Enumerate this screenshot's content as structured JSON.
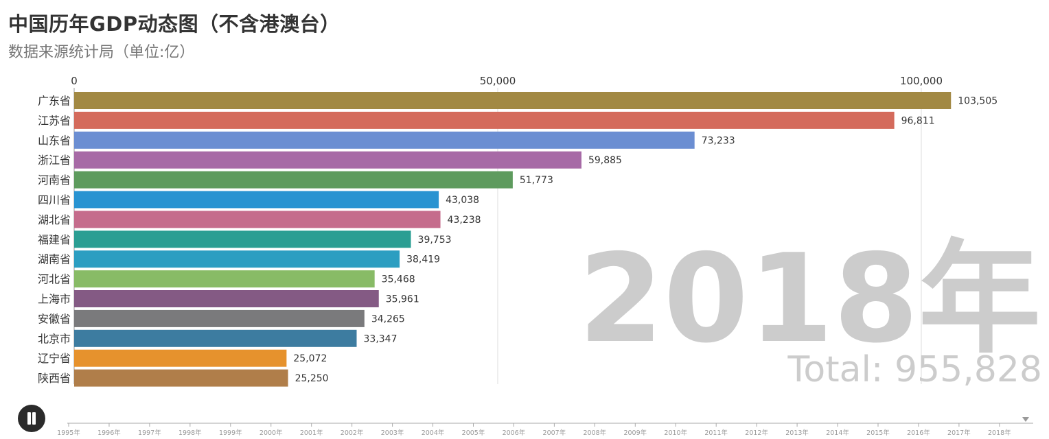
{
  "header": {
    "title": "中国历年GDP动态图（不含港澳台）",
    "subtitle": "数据来源统计局（单位:亿）"
  },
  "colors": {
    "axis_text": "#333333",
    "grid": "#dddddd",
    "year_watermark": "#cccccc",
    "play_button": "#2b2b2b",
    "timeline": "#aaaaaa"
  },
  "chart_data": {
    "type": "bar",
    "orientation": "horizontal",
    "current_year_label": "2018年",
    "total_label": "Total: 955,828",
    "xlim": [
      0,
      100000
    ],
    "x_ticks": [
      {
        "value": 0,
        "label": "0"
      },
      {
        "value": 50000,
        "label": "50,000"
      },
      {
        "value": 100000,
        "label": "100,000"
      }
    ],
    "grid": true,
    "bars": [
      {
        "name": "广东省",
        "value": 103505,
        "label": "103,505",
        "color": "#a28944"
      },
      {
        "name": "江苏省",
        "value": 96811,
        "label": "96,811",
        "color": "#d46b5c"
      },
      {
        "name": "山东省",
        "value": 73233,
        "label": "73,233",
        "color": "#6b8ed2"
      },
      {
        "name": "浙江省",
        "value": 59885,
        "label": "59,885",
        "color": "#a76aa6"
      },
      {
        "name": "河南省",
        "value": 51773,
        "label": "51,773",
        "color": "#5e9b5e"
      },
      {
        "name": "四川省",
        "value": 43038,
        "label": "43,038",
        "color": "#2993d1"
      },
      {
        "name": "湖北省",
        "value": 43238,
        "label": "43,238",
        "color": "#c56c8c"
      },
      {
        "name": "福建省",
        "value": 39753,
        "label": "39,753",
        "color": "#2b9e93"
      },
      {
        "name": "湖南省",
        "value": 38419,
        "label": "38,419",
        "color": "#2c9ec1"
      },
      {
        "name": "河北省",
        "value": 35468,
        "label": "35,468",
        "color": "#88bb66"
      },
      {
        "name": "上海市",
        "value": 35961,
        "label": "35,961",
        "color": "#845a84"
      },
      {
        "name": "安徽省",
        "value": 34265,
        "label": "34,265",
        "color": "#7a7a7c"
      },
      {
        "name": "北京市",
        "value": 33347,
        "label": "33,347",
        "color": "#3d7ca0"
      },
      {
        "name": "辽宁省",
        "value": 25072,
        "label": "25,072",
        "color": "#e6922d"
      },
      {
        "name": "陕西省",
        "value": 25250,
        "label": "25,250",
        "color": "#b07e4a"
      }
    ],
    "timeline": {
      "years": [
        "1995年",
        "1996年",
        "1997年",
        "1998年",
        "1999年",
        "2000年",
        "2001年",
        "2002年",
        "2003年",
        "2004年",
        "2005年",
        "2006年",
        "2007年",
        "2008年",
        "2009年",
        "2010年",
        "2011年",
        "2012年",
        "2013年",
        "2014年",
        "2015年",
        "2016年",
        "2017年",
        "2018年"
      ],
      "current": "2018年"
    }
  },
  "controls": {
    "pause_icon": "pause-icon"
  }
}
